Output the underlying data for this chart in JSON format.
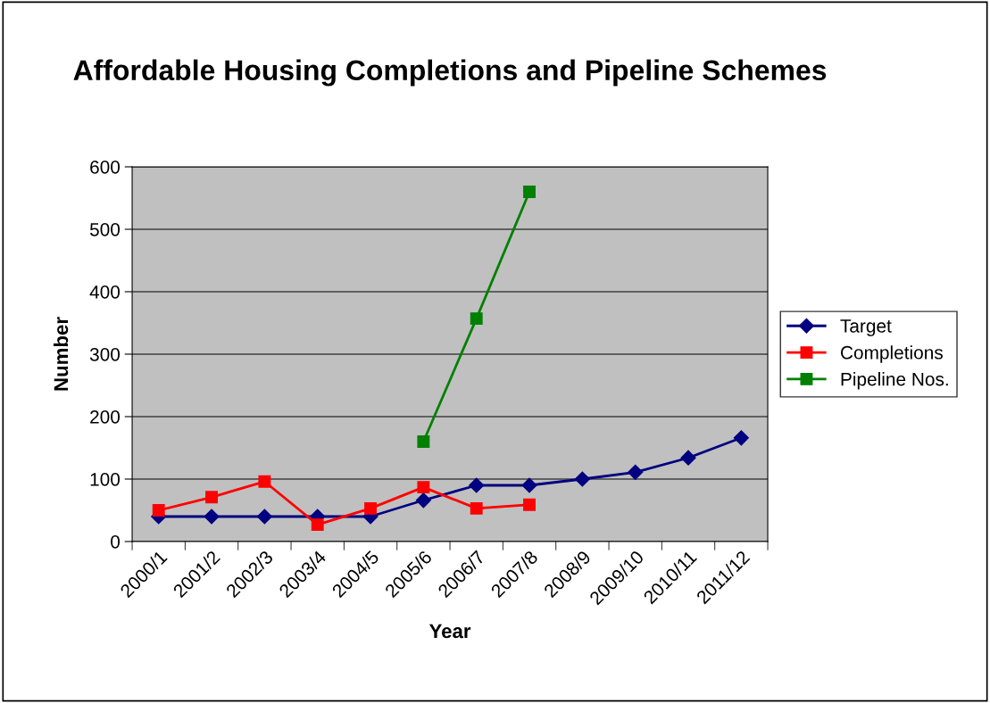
{
  "chart_data": {
    "type": "line",
    "title": "Affordable Housing Completions and Pipeline Schemes",
    "xlabel": "Year",
    "ylabel": "Number",
    "categories": [
      "2000/1",
      "2001/2",
      "2002/3",
      "2003/4",
      "2004/5",
      "2005/6",
      "2006/7",
      "2007/8",
      "2008/9",
      "2009/10",
      "2010/11",
      "2011/12"
    ],
    "series": [
      {
        "name": "Target",
        "color": "#000080",
        "marker": "diamond",
        "values": [
          40,
          40,
          40,
          40,
          40,
          66,
          90,
          90,
          100,
          111,
          134,
          166
        ]
      },
      {
        "name": "Completions",
        "color": "#ff0000",
        "marker": "square",
        "values": [
          50,
          71,
          96,
          27,
          53,
          87,
          53,
          59,
          null,
          null,
          null,
          null
        ]
      },
      {
        "name": "Pipeline Nos.",
        "color": "#008000",
        "marker": "square",
        "values": [
          null,
          null,
          null,
          null,
          null,
          160,
          357,
          560,
          null,
          null,
          null,
          null
        ]
      }
    ],
    "ylim": [
      0,
      600
    ],
    "yticks": [
      0,
      100,
      200,
      300,
      400,
      500,
      600
    ],
    "grid": "y",
    "legend": "right"
  }
}
